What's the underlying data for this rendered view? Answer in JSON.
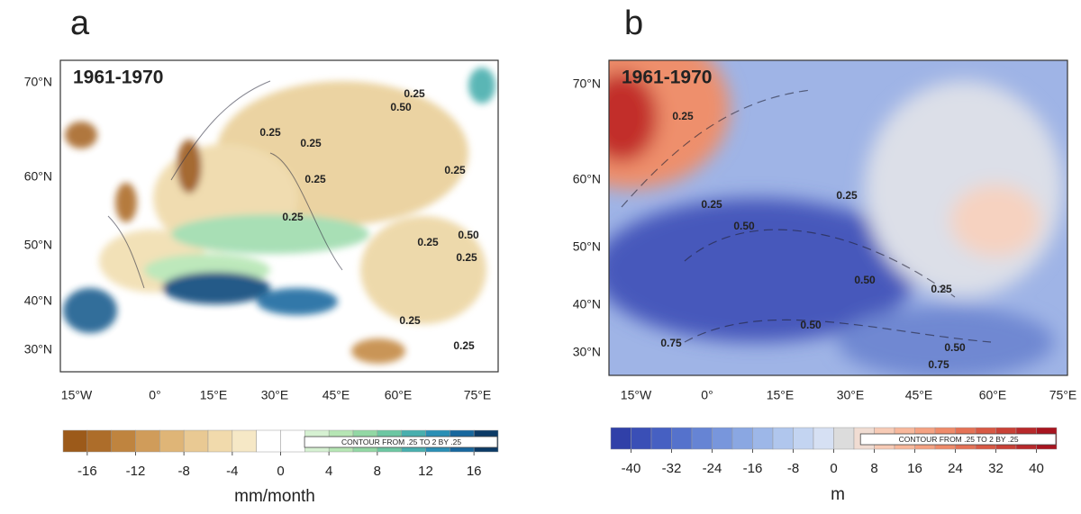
{
  "panels": [
    {
      "label": "a",
      "period": "1961-1970",
      "lat_labels": [
        "70°N",
        "60°N",
        "50°N",
        "40°N",
        "30°N"
      ],
      "lon_labels": [
        "15°W",
        "0°",
        "15°E",
        "30°E",
        "45°E",
        "60°E",
        "75°E"
      ],
      "contour_labels": [
        "0.25",
        "0.50",
        "0.25",
        "0.25",
        "0.25",
        "0.25",
        "0.25",
        "0.25",
        "0.50",
        "0.25",
        "0.25",
        "0.25"
      ],
      "colorbar": {
        "colors": [
          "#9c5a1a",
          "#ad6d2a",
          "#bf843f",
          "#d09c5a",
          "#dfb577",
          "#e9c993",
          "#f1daac",
          "#f6e8c6",
          "#ffffff",
          "#ffffff",
          "#d6f1d2",
          "#b6e6b4",
          "#92d8a4",
          "#6cc7a2",
          "#48afae",
          "#2a8fb5",
          "#17679e",
          "#0b3a66"
        ],
        "range": [
          -18,
          18
        ],
        "ticks": [
          -16,
          -12,
          -8,
          -4,
          0,
          4,
          8,
          12,
          16
        ],
        "unit": "mm/month",
        "note": "CONTOUR FROM .25 TO 2 BY .25"
      }
    },
    {
      "label": "b",
      "period": "1961-1970",
      "lat_labels": [
        "70°N",
        "60°N",
        "50°N",
        "40°N",
        "30°N"
      ],
      "lon_labels": [
        "15°W",
        "0°",
        "15°E",
        "30°E",
        "45°E",
        "60°E",
        "75°E"
      ],
      "contour_labels": [
        "0.25",
        "0.25",
        "0.50",
        "0.25",
        "0.50",
        "0.25",
        "0.50",
        "0.50",
        "0.75",
        "0.75"
      ],
      "colorbar": {
        "colors": [
          "#3040a8",
          "#3a4fb6",
          "#4660c2",
          "#5572cc",
          "#6684d4",
          "#7896dc",
          "#8aa7e2",
          "#9db7e8",
          "#b0c6ed",
          "#c3d4f1",
          "#d6e0f3",
          "#dcdcdc",
          "#f0dcd2",
          "#f7cbb6",
          "#f8b89c",
          "#f5a282",
          "#ef8b6a",
          "#e57256",
          "#d85944",
          "#c94136",
          "#b8292b",
          "#a8141f"
        ],
        "range": [
          -44,
          44
        ],
        "ticks": [
          -40,
          -32,
          -24,
          -16,
          -8,
          0,
          8,
          16,
          24,
          32,
          40
        ],
        "unit": "m",
        "note": "CONTOUR FROM .25 TO 2 BY .25"
      }
    }
  ]
}
